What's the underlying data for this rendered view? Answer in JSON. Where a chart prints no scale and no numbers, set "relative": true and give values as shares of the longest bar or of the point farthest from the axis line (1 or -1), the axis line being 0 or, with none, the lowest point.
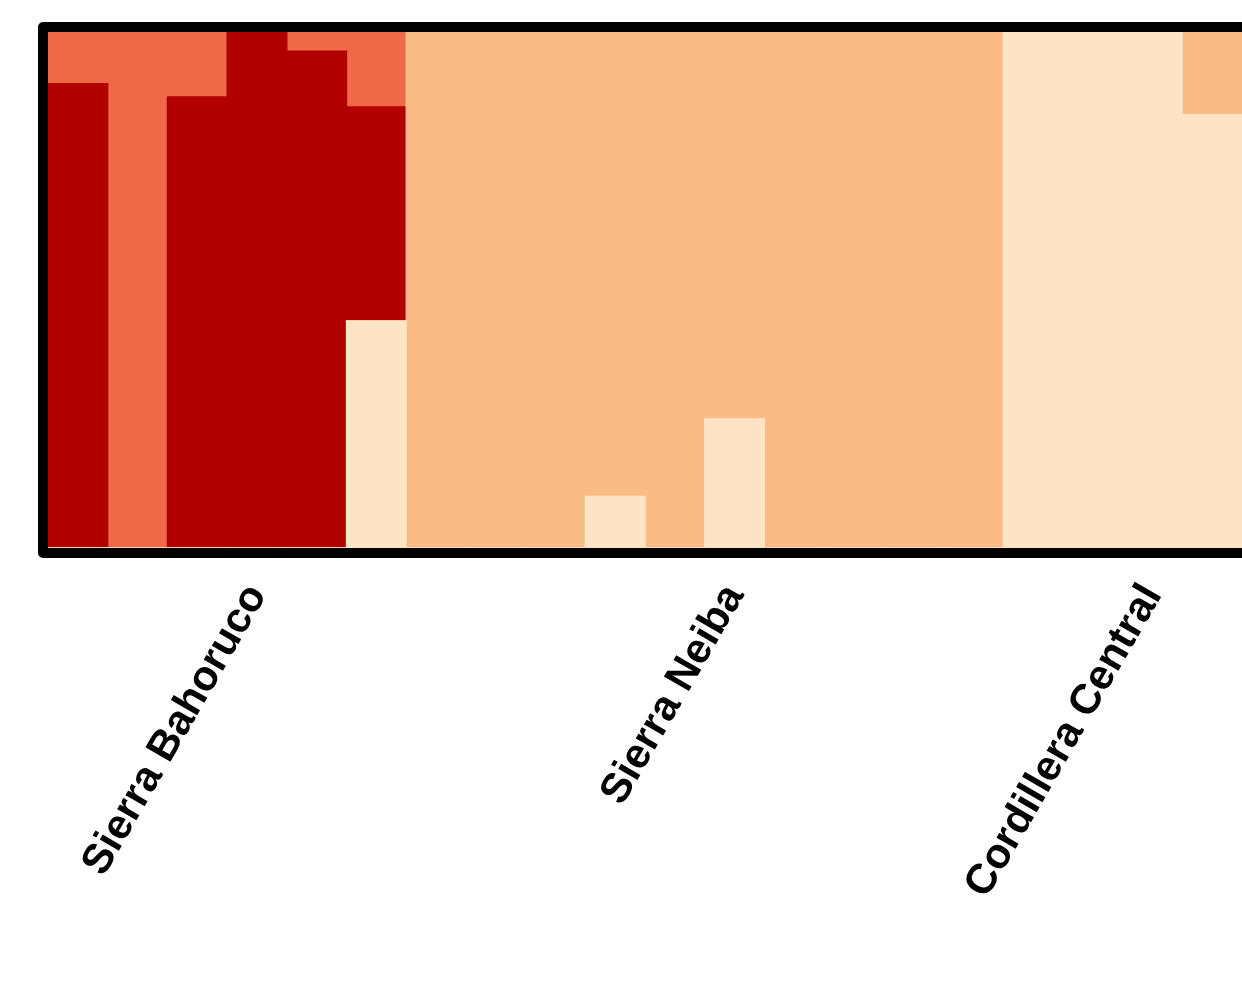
{
  "chart_data": {
    "type": "bar",
    "stacked": true,
    "relative": true,
    "legend": false,
    "categories": [
      null,
      null,
      null,
      "Sierra Bahoruco",
      null,
      null,
      null,
      null,
      null,
      null,
      null,
      "Sierra Neiba",
      null,
      null,
      null,
      null,
      null,
      null,
      "Cordillera Central",
      null
    ],
    "series": [
      {
        "color": "#fde4c4",
        "values": [
          0,
          0,
          0,
          0,
          0,
          0.44,
          0,
          0,
          0,
          0.1,
          0,
          0.25,
          0,
          0,
          0,
          0,
          1,
          1,
          1,
          0.84
        ]
      },
      {
        "color": "#fbbb84",
        "values": [
          0,
          0,
          0,
          0,
          0,
          0,
          1,
          1,
          1,
          0.9,
          1,
          0.75,
          1,
          1,
          1,
          1,
          0,
          0,
          0,
          0.16
        ]
      },
      {
        "color": "#b00000",
        "values": [
          0.9,
          0,
          0.874,
          1,
          0.963,
          0.415,
          0,
          0,
          0,
          0,
          0,
          0,
          0,
          0,
          0,
          0,
          0,
          0,
          0,
          0
        ]
      },
      {
        "color": "#ef6848",
        "values": [
          0.1,
          1,
          0.126,
          0,
          0.037,
          0.145,
          0,
          0,
          0,
          0,
          0,
          0,
          0,
          0,
          0,
          0,
          0,
          0,
          0,
          0
        ]
      }
    ]
  }
}
